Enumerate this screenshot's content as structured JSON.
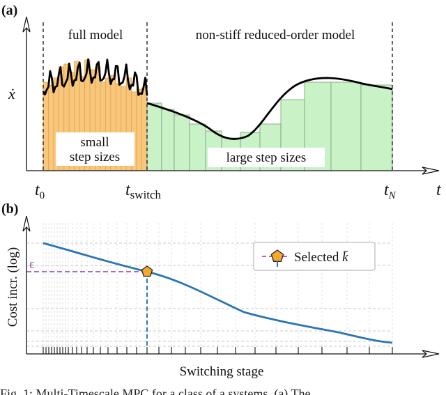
{
  "panel_a": {
    "label": "(a)",
    "y_label": "ẋ",
    "x_label": "t",
    "region_full": "full model",
    "region_reduced": "non-stiff reduced-order model",
    "small_steps": [
      "small",
      "step sizes"
    ],
    "large_steps": "large step sizes",
    "tick_t0": {
      "base": "t",
      "sub": "0"
    },
    "tick_switch": {
      "base": "t",
      "sub": "switch"
    },
    "tick_tN": {
      "base": "t",
      "sub": "N"
    },
    "colors": {
      "small": "#f9c77c",
      "small_edge": "#e0a34a",
      "large": "#c9f2c7",
      "large_edge": "#7a9a78"
    }
  },
  "panel_b": {
    "label": "(b)",
    "y_label": "Cost incr. (log)",
    "x_label": "Switching stage",
    "epsilon": "ϵ",
    "legend": {
      "text": "Selected ",
      "symbol": "k̄"
    },
    "colors": {
      "curve": "#2a75b3",
      "epsilon": "#9b59b6",
      "marker": "#f4a92e"
    }
  },
  "caption": "Fig. 1: Multi-Timescale MPC for a class of a systems. (a) The"
}
